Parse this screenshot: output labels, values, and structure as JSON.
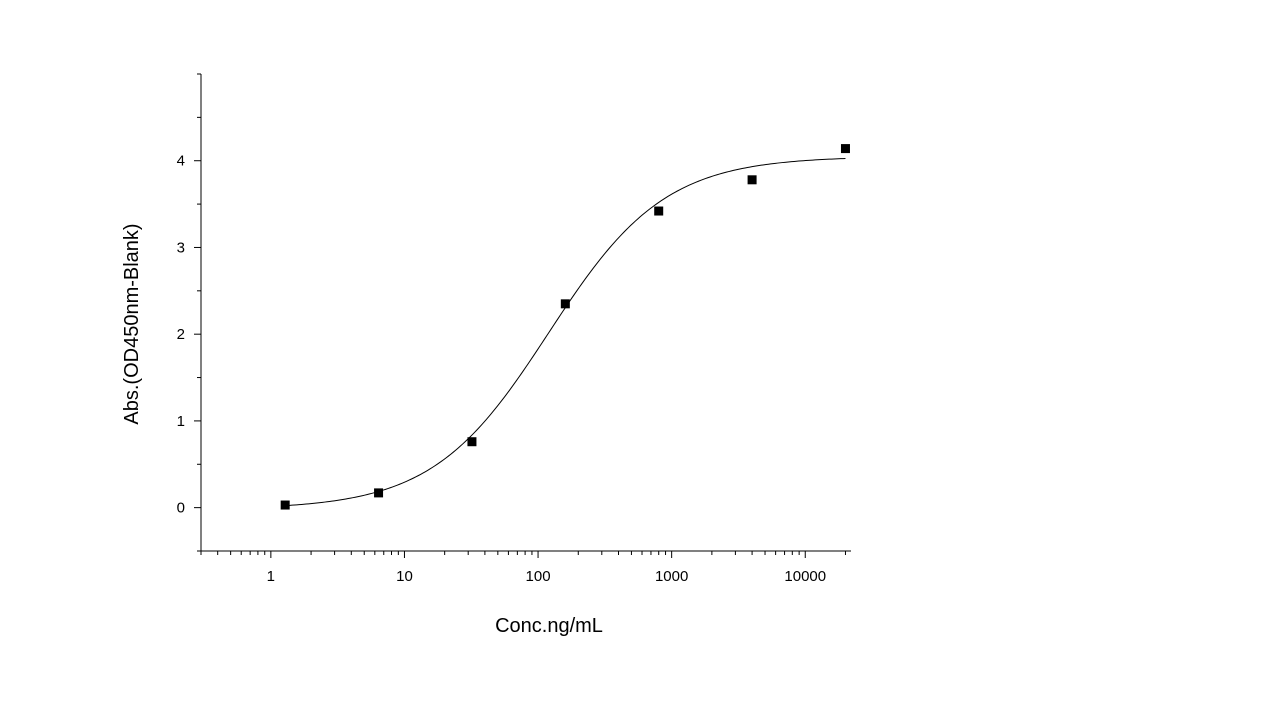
{
  "chart_data": {
    "type": "scatter",
    "title": "",
    "xlabel": "Conc.ng/mL",
    "ylabel": "Abs.(OD450nm-Blank)",
    "x_scale": "log",
    "xlim": [
      0.3,
      22000
    ],
    "ylim": [
      -0.5,
      5.0
    ],
    "x_ticks": [
      1,
      10,
      100,
      1000,
      10000
    ],
    "x_tick_labels": [
      "1",
      "10",
      "100",
      "1000",
      "10000"
    ],
    "y_ticks": [
      0,
      1,
      2,
      3,
      4
    ],
    "y_tick_labels": [
      "0",
      "1",
      "2",
      "3",
      "4"
    ],
    "grid": false,
    "legend": "none",
    "series": [
      {
        "marker": "square",
        "color": "#000000",
        "points": [
          {
            "x": 1.28,
            "y": 0.03
          },
          {
            "x": 6.4,
            "y": 0.17
          },
          {
            "x": 32,
            "y": 0.76
          },
          {
            "x": 160,
            "y": 2.35
          },
          {
            "x": 800,
            "y": 3.42
          },
          {
            "x": 4000,
            "y": 3.78
          },
          {
            "x": 20000,
            "y": 4.14
          }
        ]
      }
    ],
    "fit_curve": {
      "model": "4PL",
      "bottom": -0.02,
      "top": 4.05,
      "ec50": 120,
      "hill": 1.0,
      "x_range": [
        1.28,
        20000
      ],
      "color": "#000000"
    }
  }
}
